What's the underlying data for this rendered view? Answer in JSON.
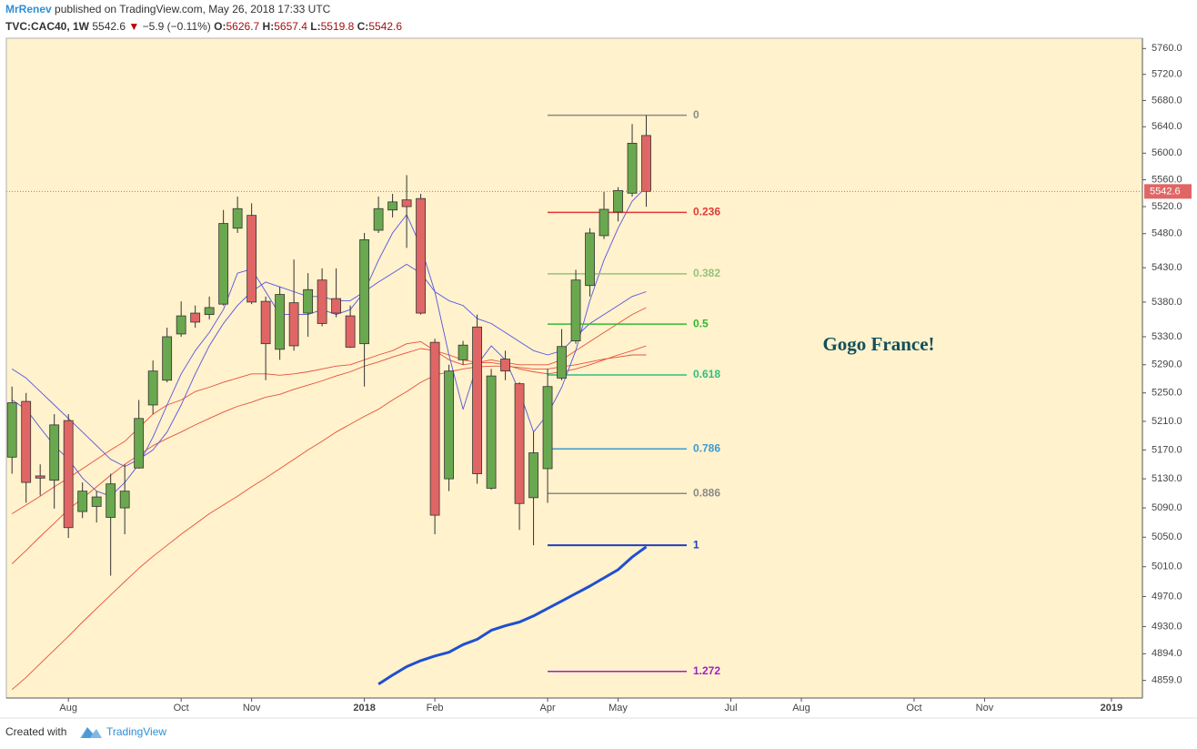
{
  "header": {
    "author": "MrRenev",
    "published": "published on TradingView.com, May 26, 2018 17:33 UTC",
    "symbol": "TVC:CAC40, 1W",
    "last": "5542.6",
    "arrow": "▼",
    "change": "−5.9 (−0.11%)",
    "ohlc": [
      {
        "label": "O:",
        "value": "5626.7"
      },
      {
        "label": "H:",
        "value": "5657.4"
      },
      {
        "label": "L:",
        "value": "5519.8"
      },
      {
        "label": "C:",
        "value": "5542.6"
      }
    ]
  },
  "footer": {
    "created": "Created with",
    "brand": "TradingView"
  },
  "chart_data": {
    "type": "candlestick",
    "annotation": "Gogo France!",
    "categories": [
      null,
      null,
      null,
      null,
      "Aug",
      null,
      null,
      null,
      null,
      null,
      null,
      null,
      "Oct",
      null,
      null,
      null,
      null,
      "Nov",
      null,
      null,
      null,
      null,
      null,
      null,
      null,
      "2018",
      null,
      null,
      null,
      null,
      "Feb",
      null,
      null,
      null,
      null,
      null,
      null,
      null,
      "Apr",
      null,
      null,
      null,
      null,
      "May",
      null,
      null,
      null,
      null,
      null,
      null,
      null,
      "Jul",
      null,
      null,
      null,
      null,
      "Aug",
      null,
      null,
      null,
      null,
      null,
      null,
      null,
      "Oct",
      null,
      null,
      null,
      null,
      "Nov",
      null,
      null,
      null,
      null,
      null,
      null,
      null,
      null,
      "2019",
      null,
      null
    ],
    "open": [
      5160,
      5238,
      5134,
      5128,
      5211,
      5085,
      5092,
      5077,
      5090,
      5145,
      5233,
      5268,
      5334,
      5364,
      5362,
      5377,
      5488,
      5507,
      5381,
      5312,
      5379,
      5364,
      5412,
      5385,
      5360,
      5320,
      5485,
      5515,
      5530,
      5532,
      5322,
      5130,
      5297,
      5344,
      5117,
      5298,
      5263,
      5104,
      5144,
      5271,
      5324,
      5404,
      5477,
      5512,
      5540,
      5626.7,
      null,
      null,
      null,
      null,
      null,
      null,
      null,
      null,
      null,
      null,
      null,
      null,
      null,
      null,
      null,
      null,
      null,
      null,
      null,
      null,
      null,
      null,
      null,
      null,
      null,
      null,
      null,
      null,
      null,
      null,
      null,
      null,
      null,
      null,
      null
    ],
    "high": [
      5259,
      5250,
      5150,
      5220,
      5220,
      5125,
      5113,
      5137,
      5150,
      5240,
      5296,
      5343,
      5381,
      5375,
      5388,
      5515,
      5535,
      5525,
      5388,
      5402,
      5442,
      5422,
      5429,
      5429,
      5375,
      5481,
      5535,
      5539,
      5567,
      5539,
      5327,
      5290,
      5324,
      5362,
      5284,
      5310,
      5265,
      5195,
      5284,
      5341,
      5427,
      5488,
      5542,
      5549,
      5644,
      5657.4,
      null,
      null,
      null,
      null,
      null,
      null,
      null,
      null,
      null,
      null,
      null,
      null,
      null,
      null,
      null,
      null,
      null,
      null,
      null,
      null,
      null,
      null,
      null,
      null,
      null,
      null,
      null,
      null,
      null,
      null,
      null,
      null,
      null,
      null,
      null
    ],
    "low": [
      5137,
      5097,
      5107,
      5089,
      5049,
      5076,
      5070,
      4998,
      5054,
      5144,
      5220,
      5265,
      5330,
      5343,
      5355,
      5375,
      5481,
      5377,
      5268,
      5297,
      5310,
      5330,
      5345,
      5358,
      5314,
      5259,
      5481,
      5504,
      5459,
      5362,
      5054,
      5113,
      5290,
      5123,
      5115,
      5268,
      5060,
      5039,
      5097,
      5268,
      5320,
      5388,
      5472,
      5498,
      5535,
      5519.8,
      null,
      null,
      null,
      null,
      null,
      null,
      null,
      null,
      null,
      null,
      null,
      null,
      null,
      null,
      null,
      null,
      null,
      null,
      null,
      null,
      null,
      null,
      null,
      null,
      null,
      null,
      null,
      null,
      null,
      null,
      null,
      null,
      null,
      null,
      null
    ],
    "close": [
      5236,
      5125,
      5131,
      5205,
      5063,
      5113,
      5105,
      5123,
      5113,
      5214,
      5281,
      5330,
      5360,
      5351,
      5372,
      5495,
      5517,
      5380,
      5320,
      5391,
      5317,
      5398,
      5349,
      5364,
      5315,
      5471,
      5517,
      5527,
      5520,
      5364,
      5080,
      5281,
      5318,
      5137,
      5274,
      5281,
      5096,
      5166,
      5259,
      5316,
      5412,
      5481,
      5516,
      5544,
      5615,
      5542.6,
      null,
      null,
      null,
      null,
      null,
      null,
      null,
      null,
      null,
      null,
      null,
      null,
      null,
      null,
      null,
      null,
      null,
      null,
      null,
      null,
      null,
      null,
      null,
      null,
      null,
      null,
      null,
      null,
      null,
      null,
      null,
      null,
      null,
      null,
      null
    ],
    "up_color": "#6aa84f",
    "down_color": "#e06666",
    "series": [
      {
        "color": "#e8503c",
        "values": [
          5082,
          5094,
          5106,
          5119,
          5131,
          5144,
          5157,
          5170,
          5182,
          5201,
          5220,
          5233,
          5240,
          5252,
          5258,
          5265,
          5271,
          5277,
          5277,
          5275,
          5277,
          5280,
          5284,
          5288,
          5290,
          5297,
          5304,
          5310,
          5320,
          5323,
          5310,
          5297,
          5290,
          5293,
          5297,
          5293,
          5290,
          5290,
          5290,
          5297,
          5310,
          5323,
          5336,
          5349,
          5362,
          5372,
          null,
          null,
          null,
          null,
          null,
          null,
          null,
          null,
          null,
          null,
          null,
          null,
          null,
          null,
          null,
          null,
          null,
          null,
          null,
          null,
          null,
          null,
          null,
          null,
          null,
          null,
          null,
          null,
          null,
          null,
          null,
          null,
          null,
          null,
          null
        ]
      },
      {
        "color": "#e8503c",
        "values": [
          5014,
          5032,
          5051,
          5069,
          5088,
          5103,
          5119,
          5135,
          5150,
          5163,
          5176,
          5186,
          5195,
          5205,
          5214,
          5223,
          5231,
          5237,
          5244,
          5248,
          5255,
          5261,
          5267,
          5274,
          5280,
          5288,
          5294,
          5301,
          5307,
          5313,
          5310,
          5304,
          5297,
          5293,
          5293,
          5290,
          5284,
          5280,
          5277,
          5280,
          5284,
          5290,
          5297,
          5304,
          5310,
          5317,
          null,
          null,
          null,
          null,
          null,
          null,
          null,
          null,
          null,
          null,
          null,
          null,
          null,
          null,
          null,
          null,
          null,
          null,
          null,
          null,
          null,
          null,
          null,
          null,
          null,
          null,
          null,
          null,
          null,
          null,
          null,
          null,
          null,
          null,
          null
        ]
      },
      {
        "color": "#e8503c",
        "values": [
          4847,
          4863,
          4881,
          4899,
          4917,
          4936,
          4954,
          4972,
          4990,
          5008,
          5024,
          5039,
          5054,
          5068,
          5082,
          5094,
          5106,
          5119,
          5131,
          5144,
          5157,
          5170,
          5182,
          5195,
          5206,
          5217,
          5227,
          5240,
          5252,
          5265,
          5275,
          5280,
          5284,
          5287,
          5288,
          5288,
          5286,
          5284,
          5284,
          5287,
          5290,
          5294,
          5298,
          5301,
          5304,
          5304,
          null,
          null,
          null,
          null,
          null,
          null,
          null,
          null,
          null,
          null,
          null,
          null,
          null,
          null,
          null,
          null,
          null,
          null,
          null,
          null,
          null,
          null,
          null,
          null,
          null,
          null,
          null,
          null,
          null,
          null,
          null,
          null,
          null,
          null,
          null
        ]
      },
      {
        "color": "#5555e0",
        "values": [
          5240,
          5227,
          5201,
          5176,
          5157,
          5131,
          5113,
          5106,
          5125,
          5150,
          5188,
          5233,
          5277,
          5310,
          5336,
          5369,
          5422,
          5428,
          5395,
          5362,
          5362,
          5362,
          5369,
          5362,
          5369,
          5395,
          5441,
          5481,
          5508,
          5461,
          5395,
          5304,
          5227,
          5290,
          5317,
          5297,
          5252,
          5195,
          5220,
          5258,
          5310,
          5382,
          5441,
          5488,
          5528,
          5549,
          null,
          null,
          null,
          null,
          null,
          null,
          null,
          null,
          null,
          null,
          null,
          null,
          null,
          null,
          null,
          null,
          null,
          null,
          null,
          null,
          null,
          null,
          null,
          null,
          null,
          null,
          null,
          null,
          null,
          null,
          null,
          null,
          null,
          null,
          null
        ]
      },
      {
        "color": "#5555e0",
        "values": [
          5284,
          5271,
          5252,
          5233,
          5214,
          5195,
          5176,
          5157,
          5147,
          5157,
          5170,
          5195,
          5233,
          5277,
          5317,
          5349,
          5375,
          5395,
          5409,
          5402,
          5395,
          5388,
          5388,
          5382,
          5382,
          5395,
          5409,
          5422,
          5435,
          5422,
          5395,
          5382,
          5375,
          5356,
          5349,
          5336,
          5323,
          5310,
          5304,
          5310,
          5330,
          5349,
          5362,
          5375,
          5388,
          5395,
          null,
          null,
          null,
          null,
          null,
          null,
          null,
          null,
          null,
          null,
          null,
          null,
          null,
          null,
          null,
          null,
          null,
          null,
          null,
          null,
          null,
          null,
          null,
          null,
          null,
          null,
          null,
          null,
          null,
          null,
          null,
          null,
          null,
          null,
          null
        ]
      },
      {
        "color": "#1f4fd0",
        "bold": true,
        "values": [
          null,
          null,
          null,
          null,
          null,
          null,
          null,
          null,
          null,
          null,
          null,
          null,
          null,
          null,
          null,
          null,
          null,
          null,
          null,
          null,
          null,
          null,
          null,
          null,
          null,
          null,
          4854,
          4866,
          4877,
          4885,
          4891,
          4896,
          4906,
          4913,
          4925,
          4931,
          4936,
          4944,
          4954,
          4964,
          4974,
          4984,
          4995,
          5006,
          5023,
          5037,
          null,
          null,
          null,
          null,
          null,
          null,
          null,
          null,
          null,
          null,
          null,
          null,
          null,
          null,
          null,
          null,
          null,
          null,
          null,
          null,
          null,
          null,
          null,
          null,
          null,
          null,
          null,
          null,
          null,
          null,
          null,
          null,
          null,
          null,
          null
        ]
      }
    ],
    "fib_levels": [
      {
        "ratio": 0,
        "price": 5657.4,
        "color": "#8a8a8a"
      },
      {
        "ratio": 0.236,
        "price": 5511.4,
        "color": "#e03a3a"
      },
      {
        "ratio": 0.382,
        "price": 5421.1,
        "color": "#93c47d"
      },
      {
        "ratio": 0.5,
        "price": 5348.2,
        "color": "#33b833"
      },
      {
        "ratio": 0.618,
        "price": 5275.4,
        "color": "#2fbf7f"
      },
      {
        "ratio": 0.786,
        "price": 5171.5,
        "color": "#3d9ad6"
      },
      {
        "ratio": 0.886,
        "price": 5109.7,
        "color": "#8a8a8a"
      },
      {
        "ratio": 1,
        "price": 5039.0,
        "color": "#1f3fbf"
      },
      {
        "ratio": 1.272,
        "price": 4870.8,
        "color": "#a020c0"
      }
    ],
    "last_color": "#e06666",
    "log_scale": true,
    "ylim": [
      4836,
      5776
    ],
    "yticks": [
      {
        "value": 5760,
        "label": "5760.0"
      },
      {
        "value": 5720,
        "label": "5720.0"
      },
      {
        "value": 5680,
        "label": "5680.0"
      },
      {
        "value": 5640,
        "label": "5640.0"
      },
      {
        "value": 5600,
        "label": "5600.0"
      },
      {
        "value": 5560,
        "label": "5560.0"
      },
      {
        "value": 5520,
        "label": "5520.0"
      },
      {
        "value": 5480,
        "label": "5480.0"
      },
      {
        "value": 5430,
        "label": "5430.0"
      },
      {
        "value": 5380,
        "label": "5380.0"
      },
      {
        "value": 5330,
        "label": "5330.0"
      },
      {
        "value": 5290,
        "label": "5290.0"
      },
      {
        "value": 5250,
        "label": "5250.0"
      },
      {
        "value": 5210,
        "label": "5210.0"
      },
      {
        "value": 5170,
        "label": "5170.0"
      },
      {
        "value": 5130,
        "label": "5130.0"
      },
      {
        "value": 5090,
        "label": "5090.0"
      },
      {
        "value": 5050,
        "label": "5050.0"
      },
      {
        "value": 5010,
        "label": "5010.0"
      },
      {
        "value": 4970,
        "label": "4970.0"
      },
      {
        "value": 4930,
        "label": "4930.0"
      },
      {
        "value": 4894,
        "label": "4894.0"
      },
      {
        "value": 4859,
        "label": "4859.0"
      }
    ]
  }
}
